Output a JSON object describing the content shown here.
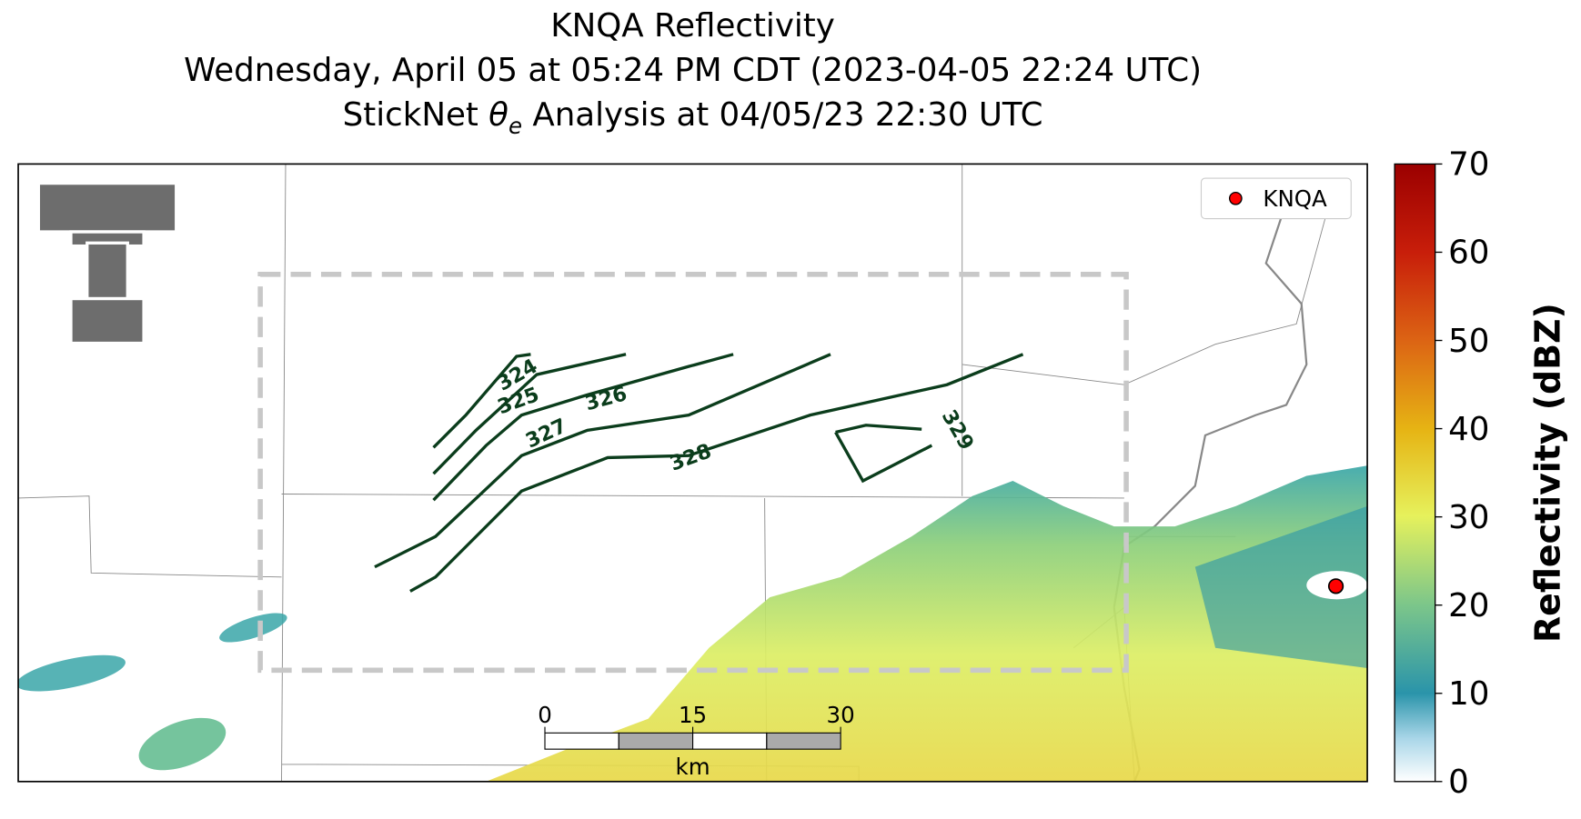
{
  "header": {
    "title": "KNQA Reflectivity",
    "subtitle": "Wednesday, April 05 at 05:24 PM CDT (2023-04-05 22:24 UTC)",
    "analysis": {
      "before": "StickNet ",
      "symbol": "θ",
      "subscript": "e",
      "after": " Analysis at 04/05/23 22:30 UTC"
    }
  },
  "legend": {
    "label": "KNQA",
    "color": "#ff0000"
  },
  "contours": [
    324,
    325,
    326,
    327,
    328,
    329
  ],
  "scale_bar": {
    "ticks": [
      0,
      15,
      30
    ],
    "unit": "km"
  },
  "colorbar": {
    "label": "Reflectivity (dBZ)",
    "lim": [
      0,
      70
    ],
    "ticks": [
      0,
      10,
      20,
      30,
      40,
      50,
      60,
      70
    ]
  }
}
